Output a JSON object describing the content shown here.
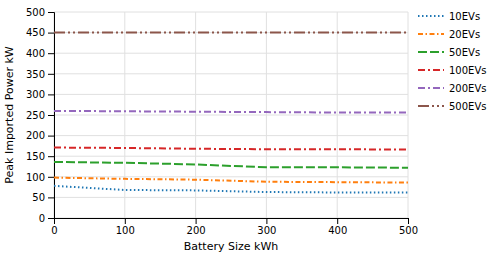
{
  "chart_data": {
    "type": "line",
    "x": [
      0,
      100,
      200,
      300,
      400,
      500
    ],
    "series": [
      {
        "name": "10EVs",
        "values": [
          78,
          68,
          67,
          63,
          62,
          62
        ],
        "line_style": "dotted"
      },
      {
        "name": "20EVs",
        "values": [
          98,
          95,
          93,
          88,
          87,
          86
        ],
        "line_style": "dashed"
      },
      {
        "name": "50EVs",
        "values": [
          136,
          134,
          130,
          123,
          123,
          122
        ],
        "line_style": "dashed2"
      },
      {
        "name": "100EVs",
        "values": [
          171,
          170,
          168,
          167,
          167,
          166
        ],
        "line_style": "dashdot"
      },
      {
        "name": "200EVs",
        "values": [
          260,
          259,
          258,
          257,
          256,
          256
        ],
        "line_style": "dashdot"
      },
      {
        "name": "500EVs",
        "values": [
          450,
          450,
          450,
          450,
          450,
          450
        ],
        "line_style": "dashdot2"
      }
    ],
    "xlabel": "Battery Size kWh",
    "ylabel": "Peak Imported Power kW",
    "xlim": [
      0,
      500
    ],
    "ylim": [
      0,
      500
    ],
    "xticks": [
      0,
      100,
      200,
      300,
      400,
      500
    ],
    "yticks": [
      0,
      50,
      100,
      150,
      200,
      250,
      300,
      350,
      400,
      450,
      500
    ],
    "grid": true,
    "legend": "right"
  }
}
